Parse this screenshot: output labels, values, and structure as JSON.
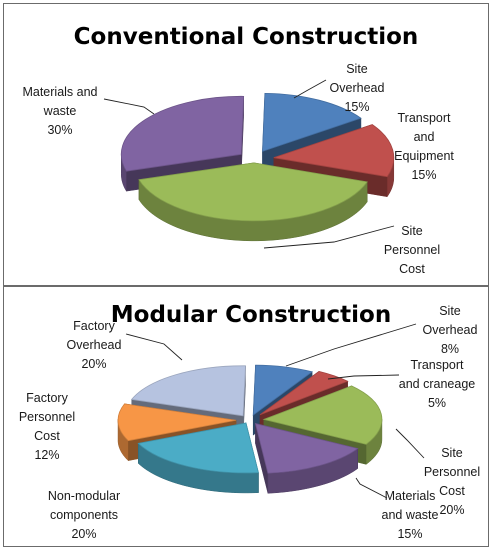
{
  "chart_data": [
    {
      "type": "pie",
      "style": "3d-exploded",
      "title": "Conventional Construction",
      "slices": [
        {
          "label": "Site Overhead",
          "value": 15,
          "color": "#4f81bd",
          "lines": [
            "Site",
            "Overhead",
            "15%"
          ]
        },
        {
          "label": "Transport and Equipment",
          "value": 15,
          "color": "#c0504d",
          "lines": [
            "Transport",
            "and",
            "Equipment",
            "15%"
          ]
        },
        {
          "label": "Site Personnel Cost",
          "value": 40,
          "color": "#9bbb59",
          "lines": [
            "Site",
            "Personnel",
            "Cost"
          ]
        },
        {
          "label": "Materials and waste",
          "value": 30,
          "color": "#8064a2",
          "lines": [
            "Materials and",
            "waste",
            "30%"
          ]
        }
      ]
    },
    {
      "type": "pie",
      "style": "3d-exploded",
      "title": "Modular Construction",
      "slices": [
        {
          "label": "Site Overhead",
          "value": 8,
          "color": "#4f81bd",
          "lines": [
            "Site",
            "Overhead",
            "8%"
          ]
        },
        {
          "label": "Transport and craneage",
          "value": 5,
          "color": "#c0504d",
          "lines": [
            "Transport",
            "and craneage",
            "5%"
          ]
        },
        {
          "label": "Site Personnel Cost",
          "value": 20,
          "color": "#9bbb59",
          "lines": [
            "Site",
            "Personnel",
            "Cost",
            "20%"
          ]
        },
        {
          "label": "Materials and waste",
          "value": 15,
          "color": "#8064a2",
          "lines": [
            "Materials",
            "and waste",
            "15%"
          ]
        },
        {
          "label": "Non-modular components",
          "value": 20,
          "color": "#4bacc6",
          "lines": [
            "Non-modular",
            "components",
            "20%"
          ]
        },
        {
          "label": "Factory Personnel Cost",
          "value": 12,
          "color": "#f79646",
          "lines": [
            "Factory",
            "Personnel",
            "Cost",
            "12%"
          ]
        },
        {
          "label": "Factory Overhead",
          "value": 20,
          "color": "#b6c3e0",
          "lines": [
            "Factory",
            "Overhead",
            "20%"
          ]
        }
      ]
    }
  ]
}
